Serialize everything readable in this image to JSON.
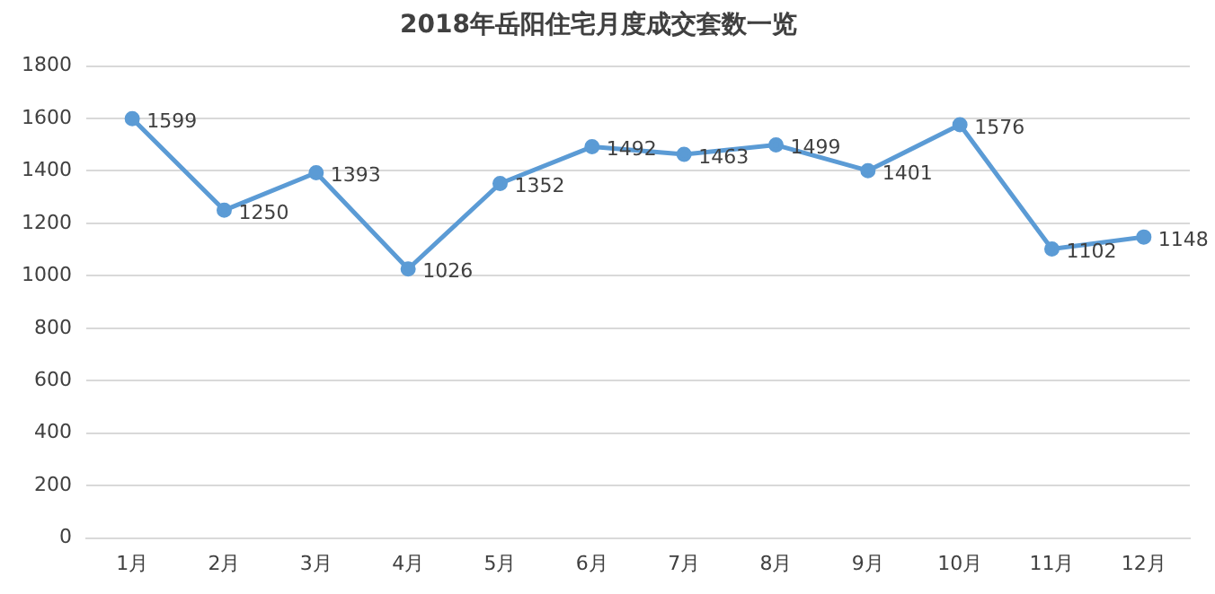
{
  "chart_data": {
    "type": "line",
    "title": "2018年岳阳住宅月度成交套数一览",
    "categories": [
      "1月",
      "2月",
      "3月",
      "4月",
      "5月",
      "6月",
      "7月",
      "8月",
      "9月",
      "10月",
      "11月",
      "12月"
    ],
    "series": [
      {
        "color": "#5b9bd5",
        "values": [
          1599,
          1250,
          1393,
          1026,
          1352,
          1492,
          1463,
          1499,
          1401,
          1576,
          1102,
          1148
        ]
      }
    ],
    "ylim": [
      0,
      1800
    ],
    "yticks": [
      0,
      200,
      400,
      600,
      800,
      1000,
      1200,
      1400,
      1600,
      1800
    ],
    "grid": "y",
    "marker": "circle",
    "line_style": "solid",
    "data_labels": true,
    "legend": false
  }
}
